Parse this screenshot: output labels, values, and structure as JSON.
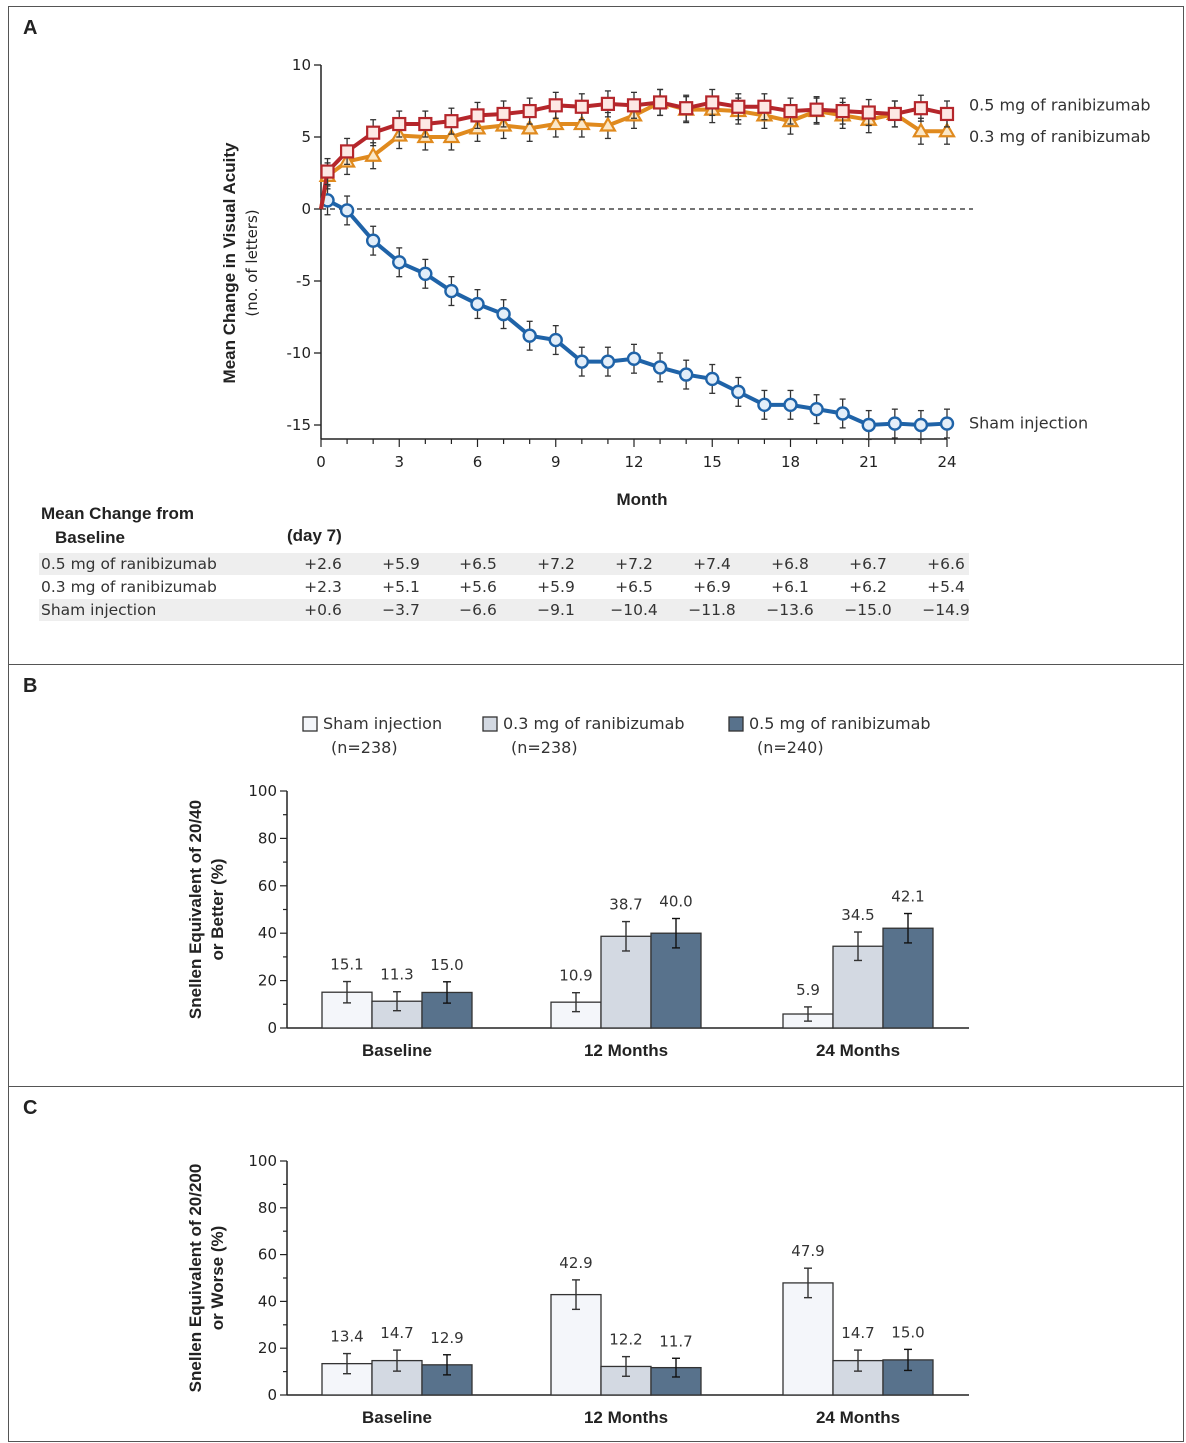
{
  "panels": {
    "a_label": "A",
    "b_label": "B",
    "c_label": "C"
  },
  "table": {
    "header_line1": "Mean Change from",
    "header_line2": "Baseline",
    "first_col_header": "(day 7)",
    "rows": [
      {
        "label": "0.5 mg of ranibizumab",
        "values": [
          "+2.6",
          "+5.9",
          "+6.5",
          "+7.2",
          "+7.2",
          "+7.4",
          "+6.8",
          "+6.7",
          "+6.6"
        ]
      },
      {
        "label": "0.3 mg of ranibizumab",
        "values": [
          "+2.3",
          "+5.1",
          "+5.6",
          "+5.9",
          "+6.5",
          "+6.9",
          "+6.1",
          "+6.2",
          "+5.4"
        ]
      },
      {
        "label": "Sham injection",
        "values": [
          "+0.6",
          "−3.7",
          "−6.6",
          "−9.1",
          "−10.4",
          "−11.8",
          "−13.6",
          "−15.0",
          "−14.9"
        ]
      }
    ]
  },
  "colors": {
    "red": "#b5262b",
    "orange": "#e08a1e",
    "blue": "#1f63a8",
    "bar_sham": "#f4f6fa",
    "bar_03": "#d3d9e2",
    "bar_05": "#58728c"
  },
  "chart_data": [
    {
      "type": "line",
      "xlabel": "Month",
      "ylabel_line1": "Mean Change in Visual Acuity",
      "ylabel_line2": "(no. of letters)",
      "xlim": [
        0,
        24
      ],
      "ylim": [
        -15,
        10
      ],
      "xticks": [
        "0",
        "3",
        "6",
        "9",
        "12",
        "15",
        "18",
        "21",
        "24"
      ],
      "yticks": [
        "10",
        "5",
        "0",
        "-5",
        "-10",
        "-15"
      ],
      "reference_line_y": 0,
      "series": [
        {
          "name": "0.5 mg of ranibizumab",
          "color": "#b5262b",
          "marker": "square",
          "x": [
            0,
            0.25,
            1,
            2,
            3,
            4,
            5,
            6,
            7,
            8,
            9,
            10,
            11,
            12,
            13,
            14,
            15,
            16,
            17,
            18,
            19,
            20,
            21,
            22,
            23,
            24
          ],
          "y": [
            0,
            2.6,
            4.0,
            5.3,
            5.9,
            5.9,
            6.1,
            6.5,
            6.6,
            6.8,
            7.2,
            7.1,
            7.3,
            7.2,
            7.4,
            7.0,
            7.4,
            7.1,
            7.1,
            6.8,
            6.9,
            6.8,
            6.7,
            6.6,
            7.0,
            6.6
          ],
          "error": 0.9
        },
        {
          "name": "0.3 mg of ranibizumab",
          "color": "#e08a1e",
          "marker": "triangle",
          "x": [
            0,
            0.25,
            1,
            2,
            3,
            4,
            5,
            6,
            7,
            8,
            9,
            10,
            11,
            12,
            13,
            14,
            15,
            16,
            17,
            18,
            19,
            20,
            21,
            22,
            23,
            24
          ],
          "y": [
            0,
            2.3,
            3.3,
            3.7,
            5.1,
            5.0,
            5.0,
            5.6,
            5.8,
            5.6,
            5.9,
            5.9,
            5.8,
            6.5,
            7.4,
            6.9,
            6.9,
            6.8,
            6.5,
            6.1,
            6.8,
            6.5,
            6.2,
            6.6,
            5.4,
            5.4
          ],
          "error": 0.9
        },
        {
          "name": "Sham injection",
          "color": "#1f63a8",
          "marker": "circle",
          "x": [
            0.25,
            1,
            2,
            3,
            4,
            5,
            6,
            7,
            8,
            9,
            10,
            11,
            12,
            13,
            14,
            15,
            16,
            17,
            18,
            19,
            20,
            21,
            22,
            23,
            24
          ],
          "y": [
            0.6,
            -0.1,
            -2.2,
            -3.7,
            -4.5,
            -5.7,
            -6.6,
            -7.3,
            -8.8,
            -9.1,
            -10.6,
            -10.6,
            -10.4,
            -11.0,
            -11.5,
            -11.8,
            -12.7,
            -13.6,
            -13.6,
            -13.9,
            -14.2,
            -15.0,
            -14.9,
            -15.0,
            -14.9
          ],
          "error": 1.0
        }
      ]
    },
    {
      "type": "bar",
      "ylabel_line1": "Snellen Equivalent of 20/40",
      "ylabel_line2": "or Better (%)",
      "ylim": [
        0,
        100
      ],
      "yticks": [
        "0",
        "20",
        "40",
        "60",
        "80",
        "100"
      ],
      "categories": [
        "Baseline",
        "12 Months",
        "24 Months"
      ],
      "series": [
        {
          "name": "Sham injection",
          "n_label": "(n=238)",
          "color": "#f4f6fa",
          "values": [
            15.1,
            10.9,
            5.9
          ],
          "labels": [
            "15.1",
            "10.9",
            "5.9"
          ],
          "errors": [
            4.5,
            4.0,
            3.0
          ]
        },
        {
          "name": "0.3 mg of ranibizumab",
          "n_label": "(n=238)",
          "color": "#d3d9e2",
          "values": [
            11.3,
            38.7,
            34.5
          ],
          "labels": [
            "11.3",
            "38.7",
            "34.5"
          ],
          "errors": [
            4.0,
            6.2,
            6.0
          ]
        },
        {
          "name": "0.5 mg of ranibizumab",
          "n_label": "(n=240)",
          "color": "#58728c",
          "values": [
            15.0,
            40.0,
            42.1
          ],
          "labels": [
            "15.0",
            "40.0",
            "42.1"
          ],
          "errors": [
            4.5,
            6.2,
            6.2
          ]
        }
      ]
    },
    {
      "type": "bar",
      "ylabel_line1": "Snellen Equivalent of 20/200",
      "ylabel_line2": "or Worse (%)",
      "ylim": [
        0,
        100
      ],
      "yticks": [
        "0",
        "20",
        "40",
        "60",
        "80",
        "100"
      ],
      "categories": [
        "Baseline",
        "12 Months",
        "24 Months"
      ],
      "series": [
        {
          "name": "Sham injection",
          "color": "#f4f6fa",
          "values": [
            13.4,
            42.9,
            47.9
          ],
          "labels": [
            "13.4",
            "42.9",
            "47.9"
          ],
          "errors": [
            4.3,
            6.3,
            6.3
          ]
        },
        {
          "name": "0.3 mg of ranibizumab",
          "color": "#d3d9e2",
          "values": [
            14.7,
            12.2,
            14.7
          ],
          "labels": [
            "14.7",
            "12.2",
            "14.7"
          ],
          "errors": [
            4.5,
            4.2,
            4.5
          ]
        },
        {
          "name": "0.5 mg of ranibizumab",
          "color": "#58728c",
          "values": [
            12.9,
            11.7,
            15.0
          ],
          "labels": [
            "12.9",
            "11.7",
            "15.0"
          ],
          "errors": [
            4.3,
            4.0,
            4.5
          ]
        }
      ]
    }
  ]
}
